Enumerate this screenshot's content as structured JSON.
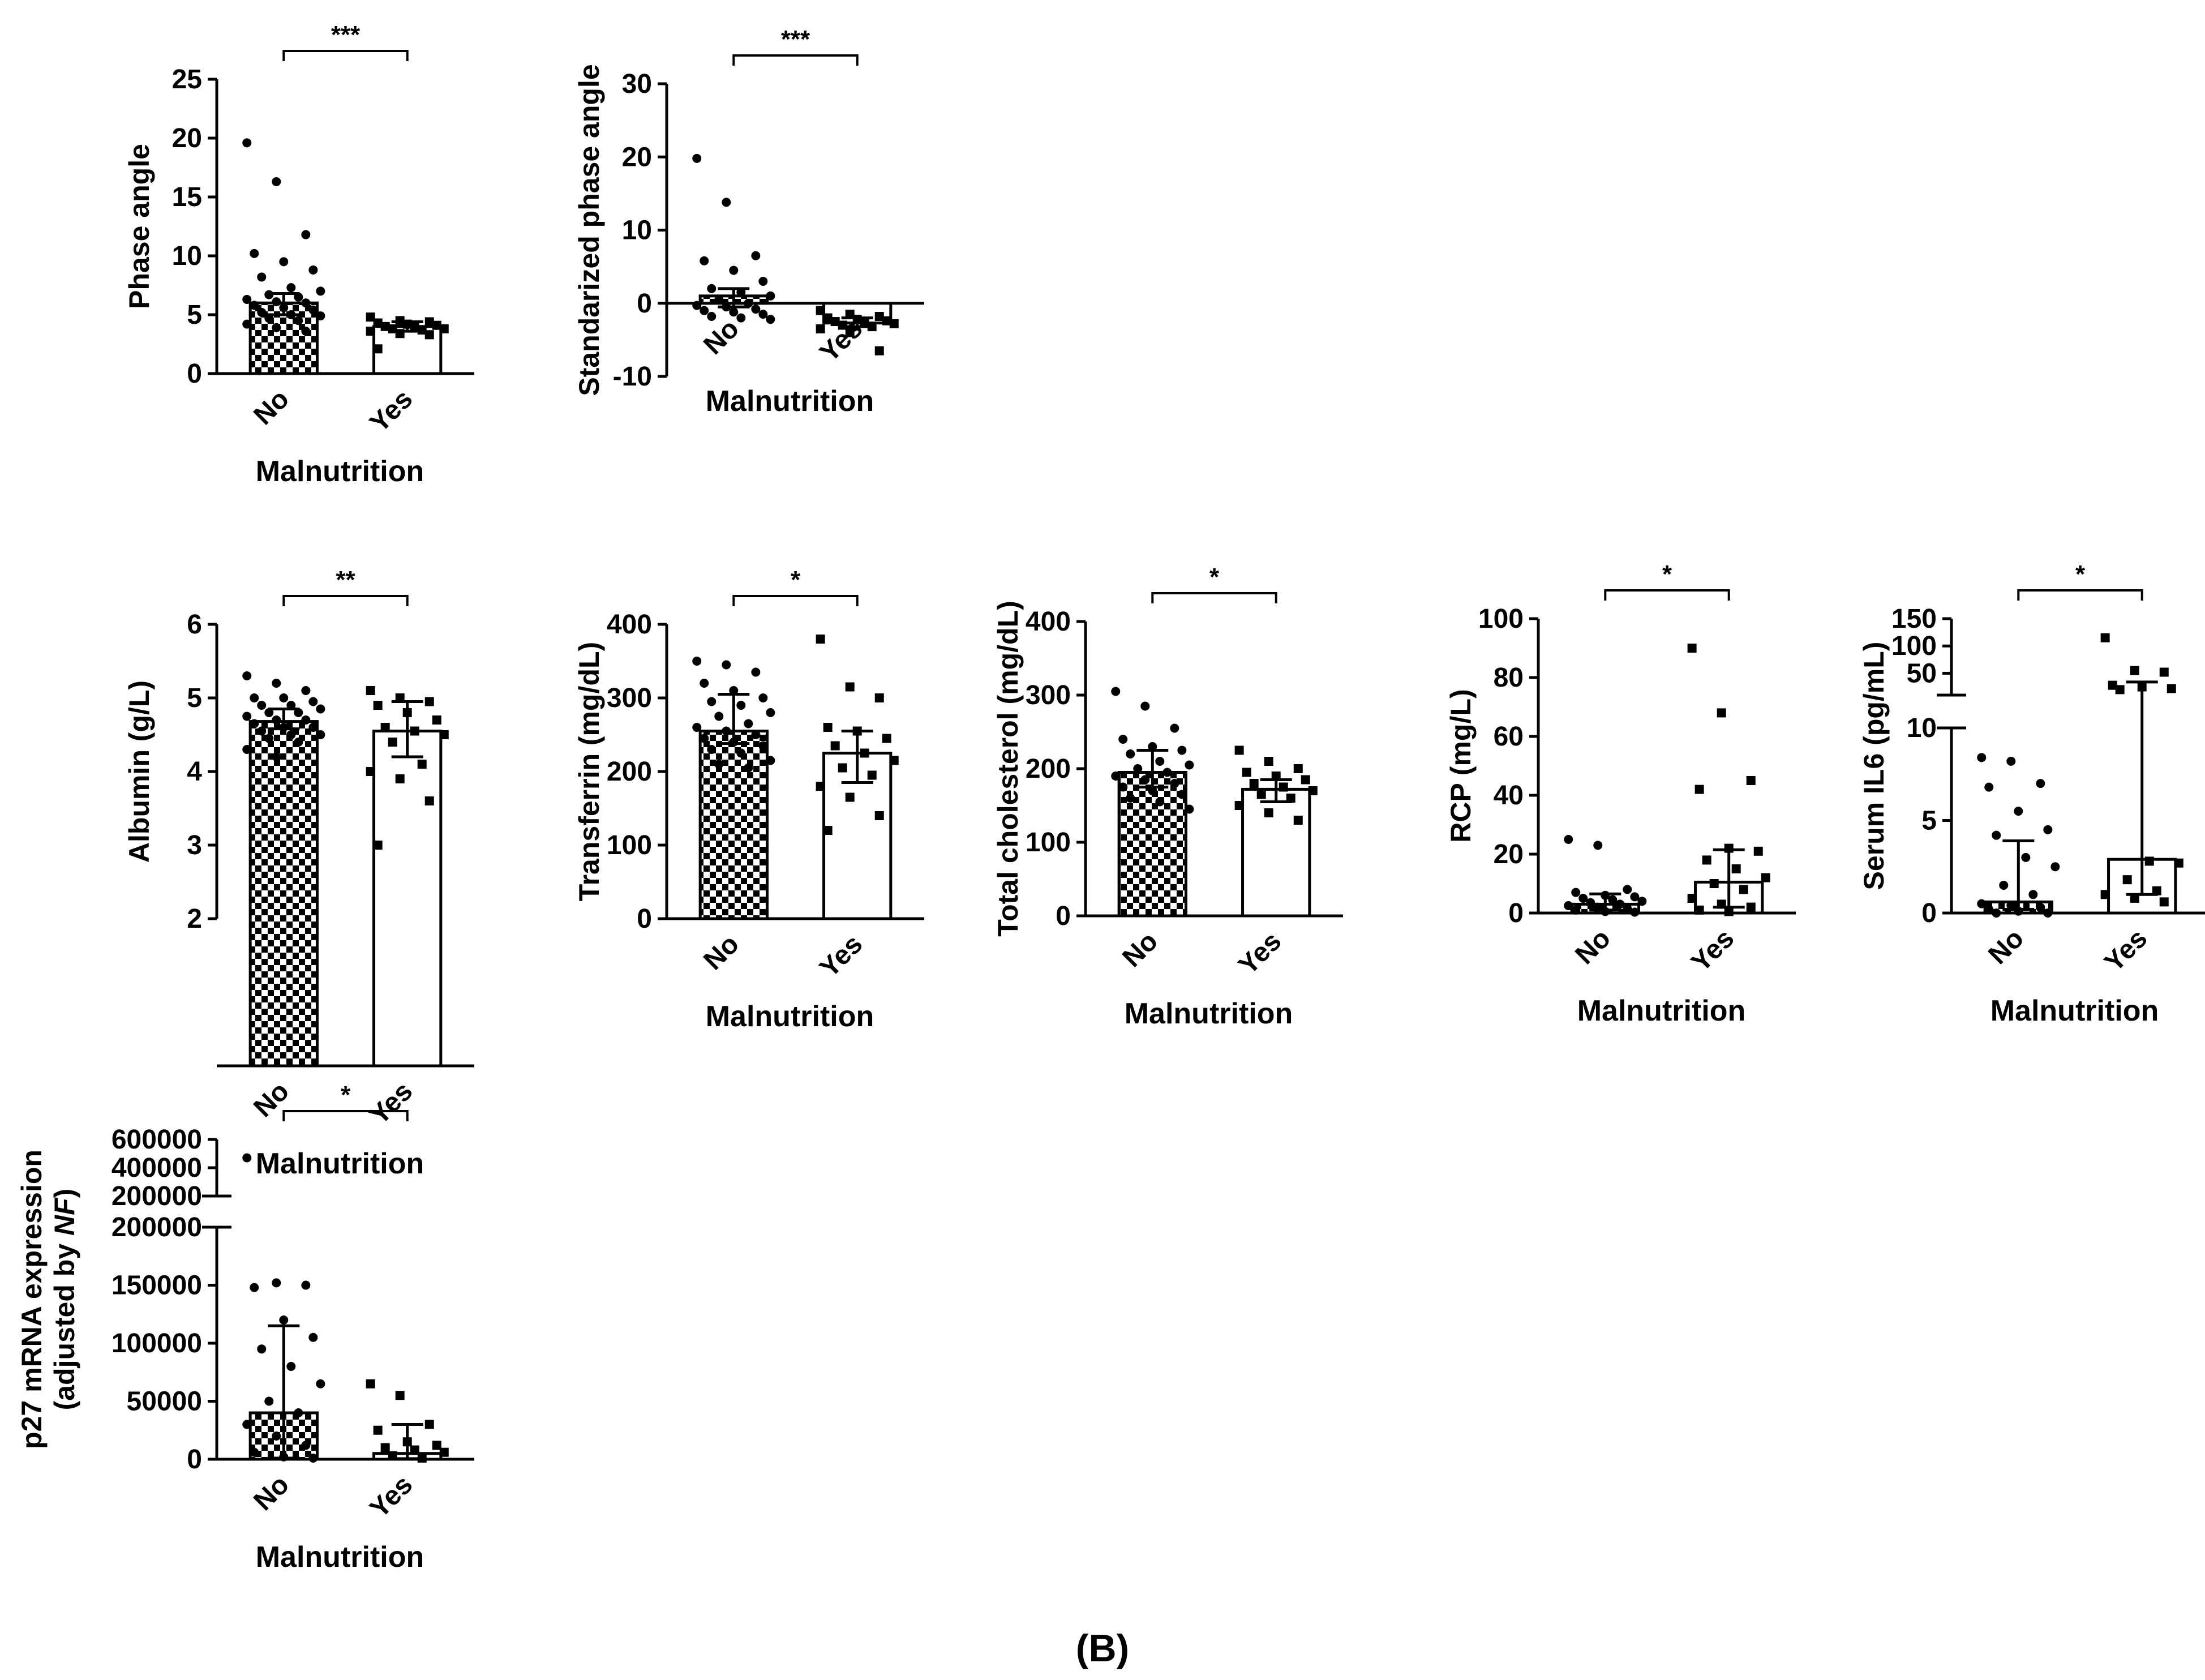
{
  "figure": {
    "panel_label": "(B)",
    "accent_colors": {
      "ink": "#000000",
      "background": "#ffffff"
    }
  },
  "chart_data": [
    {
      "type": "bar",
      "title": "",
      "categories": [
        "No",
        "Yes"
      ],
      "xlabel": "Malnutrition",
      "ylabel": "Phase angle",
      "ylim": [
        0,
        25
      ],
      "ticks": [
        0,
        5,
        10,
        15,
        20,
        25
      ],
      "values": [
        6.0,
        4.0
      ],
      "error": [
        [
          5.0,
          6.8
        ],
        [
          3.6,
          4.4
        ]
      ],
      "significance": "***",
      "points": [
        [
          19.6,
          16.3,
          11.8,
          10.2,
          9.5,
          8.8,
          8.2,
          7.3,
          7.0,
          6.7,
          6.5,
          6.3,
          6.1,
          6.0,
          5.8,
          5.6,
          5.4,
          5.2,
          5.0,
          4.9,
          4.7,
          4.5,
          4.2,
          3.9,
          3.6
        ],
        [
          4.8,
          4.5,
          4.4,
          4.3,
          4.2,
          4.1,
          4.0,
          3.9,
          3.8,
          3.8,
          3.7,
          3.6,
          3.4,
          3.3,
          2.1
        ]
      ]
    },
    {
      "type": "bar",
      "title": "",
      "categories": [
        "No",
        "Yes"
      ],
      "xlabel": "Malnutrition",
      "ylabel": "Standarized phase angle",
      "ylim": [
        -10,
        30
      ],
      "ticks": [
        -10,
        0,
        10,
        20,
        30
      ],
      "values": [
        1.0,
        -2.7
      ],
      "error": [
        [
          -0.5,
          2.0
        ],
        [
          -3.2,
          -2.0
        ]
      ],
      "significance": "***",
      "points": [
        [
          19.8,
          13.8,
          6.5,
          5.8,
          4.5,
          3.0,
          2.0,
          1.5,
          1.0,
          0.5,
          0.0,
          -0.3,
          -0.5,
          -0.8,
          -1.0,
          -1.2,
          -1.5,
          -1.8,
          -2.0,
          -2.2
        ],
        [
          -1.0,
          -1.5,
          -1.8,
          -2.0,
          -2.2,
          -2.4,
          -2.5,
          -2.6,
          -2.8,
          -3.0,
          -3.2,
          -3.5,
          -4.0,
          -6.5
        ]
      ]
    },
    {
      "type": "bar",
      "title": "",
      "categories": [
        "No",
        "Yes"
      ],
      "xlabel": "Malnutrition",
      "ylabel": "Albumin (g/L)",
      "ylim": [
        2,
        6
      ],
      "ticks": [
        2,
        3,
        4,
        5,
        6
      ],
      "values": [
        4.68,
        4.55
      ],
      "error": [
        [
          4.58,
          4.85
        ],
        [
          4.2,
          4.95
        ]
      ],
      "significance": "**",
      "points": [
        [
          5.3,
          5.2,
          5.1,
          5.0,
          5.0,
          4.95,
          4.9,
          4.9,
          4.85,
          4.8,
          4.8,
          4.75,
          4.7,
          4.7,
          4.65,
          4.6,
          4.6,
          4.55,
          4.5,
          4.5,
          4.45,
          4.4,
          4.3,
          4.2
        ],
        [
          5.1,
          5.0,
          4.95,
          4.9,
          4.8,
          4.7,
          4.6,
          4.55,
          4.5,
          4.4,
          4.1,
          4.0,
          3.9,
          3.6,
          3.0
        ]
      ]
    },
    {
      "type": "bar",
      "title": "",
      "categories": [
        "No",
        "Yes"
      ],
      "xlabel": "Malnutrition",
      "ylabel": "Transferrin (mg/dL)",
      "ylim": [
        0,
        400
      ],
      "ticks": [
        0,
        100,
        200,
        300,
        400
      ],
      "values": [
        255,
        225
      ],
      "error": [
        [
          238,
          305
        ],
        [
          185,
          255
        ]
      ],
      "significance": "*",
      "points": [
        [
          350,
          345,
          335,
          320,
          310,
          300,
          295,
          290,
          280,
          275,
          265,
          260,
          255,
          250,
          245,
          240,
          235,
          230,
          225,
          215,
          210,
          205
        ],
        [
          380,
          315,
          300,
          260,
          255,
          245,
          235,
          225,
          215,
          205,
          195,
          180,
          165,
          140,
          120
        ]
      ]
    },
    {
      "type": "bar",
      "title": "",
      "categories": [
        "No",
        "Yes"
      ],
      "xlabel": "Malnutrition",
      "ylabel": "Total cholesterol (mg/dL)",
      "ylim": [
        0,
        400
      ],
      "ticks": [
        0,
        100,
        200,
        300,
        400
      ],
      "values": [
        195,
        172
      ],
      "error": [
        [
          175,
          225
        ],
        [
          155,
          185
        ]
      ],
      "significance": "*",
      "points": [
        [
          305,
          285,
          255,
          240,
          230,
          225,
          220,
          210,
          205,
          200,
          195,
          190,
          185,
          180,
          175,
          170,
          165,
          160,
          155,
          145
        ],
        [
          225,
          210,
          200,
          195,
          190,
          185,
          180,
          175,
          170,
          165,
          160,
          150,
          140,
          130
        ]
      ]
    },
    {
      "type": "bar",
      "title": "",
      "categories": [
        "No",
        "Yes"
      ],
      "xlabel": "Malnutrition",
      "ylabel": "RCP (mg/L)",
      "ylim": [
        0,
        100
      ],
      "ticks": [
        0,
        20,
        40,
        60,
        80,
        100
      ],
      "values": [
        3.0,
        10.5
      ],
      "error": [
        [
          1.0,
          6.5
        ],
        [
          2.0,
          21.5
        ]
      ],
      "significance": "*",
      "points": [
        [
          25,
          23,
          8,
          7,
          6,
          5.5,
          5,
          4.5,
          4,
          3.5,
          3,
          2.5,
          2,
          1.5,
          1,
          0.5,
          0.3
        ],
        [
          90,
          68,
          45,
          42,
          22,
          21,
          18,
          15,
          12,
          10,
          8,
          5,
          3,
          2,
          1,
          0.5
        ]
      ]
    },
    {
      "type": "bar",
      "title": "",
      "categories": [
        "No",
        "Yes"
      ],
      "xlabel": "Malnutrition",
      "ylabel": "Serum IL6 (pg/mL)",
      "axis_break": true,
      "ylim_lower": [
        0,
        10
      ],
      "ylim_upper": [
        10,
        150
      ],
      "ticks_lower": [
        0,
        5,
        10
      ],
      "ticks_upper": [
        50,
        100,
        150
      ],
      "values": [
        0.6,
        2.9
      ],
      "error": [
        [
          0.2,
          3.9
        ],
        [
          1.0,
          34.0
        ]
      ],
      "significance": "*",
      "points": [
        [
          8.4,
          8.2,
          7.0,
          6.8,
          5.5,
          4.5,
          4.2,
          3.0,
          2.5,
          1.5,
          1.0,
          0.5,
          0.4,
          0.3,
          0.2,
          0.1,
          0.0,
          0.0
        ],
        [
          115,
          55,
          52,
          28,
          25,
          22,
          20,
          2.8,
          2.7,
          1.8,
          1.2,
          1.0,
          0.8,
          0.6
        ]
      ]
    },
    {
      "type": "bar",
      "title": "",
      "categories": [
        "No",
        "Yes"
      ],
      "xlabel": "Malnutrition",
      "ylabel": "p27 mRNA expression",
      "ylabel_line2": "(adjusted by ",
      "ylabel_italic": "NF",
      "ylabel_close": ")",
      "axis_break": true,
      "ylim_lower": [
        0,
        200000
      ],
      "ylim_upper": [
        200000,
        600000
      ],
      "ticks_lower": [
        0,
        50000,
        100000,
        150000,
        200000
      ],
      "ticks_upper": [
        200000,
        400000,
        600000
      ],
      "values": [
        40000,
        5000
      ],
      "error": [
        [
          1000,
          115000
        ],
        [
          500,
          30000
        ]
      ],
      "significance": "*",
      "points": [
        [
          470000,
          152000,
          150000,
          148000,
          120000,
          105000,
          95000,
          80000,
          65000,
          50000,
          40000,
          30000,
          20000,
          12000,
          6000,
          2000,
          1000
        ],
        [
          65000,
          55000,
          30000,
          25000,
          15000,
          12000,
          10000,
          8000,
          6000,
          3000,
          1000
        ]
      ]
    }
  ]
}
